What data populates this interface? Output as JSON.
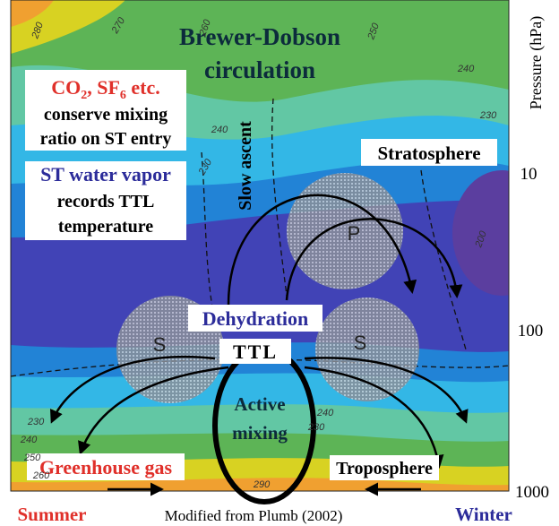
{
  "title": [
    "Brewer-Dobson",
    "circulation"
  ],
  "co2_note": {
    "parts": [
      "CO",
      "2",
      ", SF",
      "6",
      " etc."
    ],
    "lines": [
      "conserve mixing",
      "ratio on ST entry"
    ]
  },
  "water_note": {
    "title": "ST water vapor",
    "lines": [
      "records TTL",
      "temperature"
    ]
  },
  "slow_ascent": "Slow ascent",
  "stratosphere": "Stratosphere",
  "regions": [
    "P",
    "S",
    "S"
  ],
  "dehydration": "Dehydration",
  "ttl": "TTL",
  "active_mixing": [
    "Active",
    "mixing"
  ],
  "greenhouse_gas": "Greenhouse gas",
  "troposphere": "Troposphere",
  "axis": {
    "title": "Pressure (hPa)",
    "ticks": [
      "10",
      "100",
      "1000"
    ]
  },
  "contour_labels": [
    "280",
    "270",
    "260",
    "250",
    "240",
    "230",
    "240",
    "230",
    "200",
    "230",
    "240",
    "250",
    "260",
    "240",
    "230",
    "290"
  ],
  "footer": {
    "summer": "Summer",
    "credit": "Modified from Plumb (2002)",
    "winter": "Winter"
  }
}
